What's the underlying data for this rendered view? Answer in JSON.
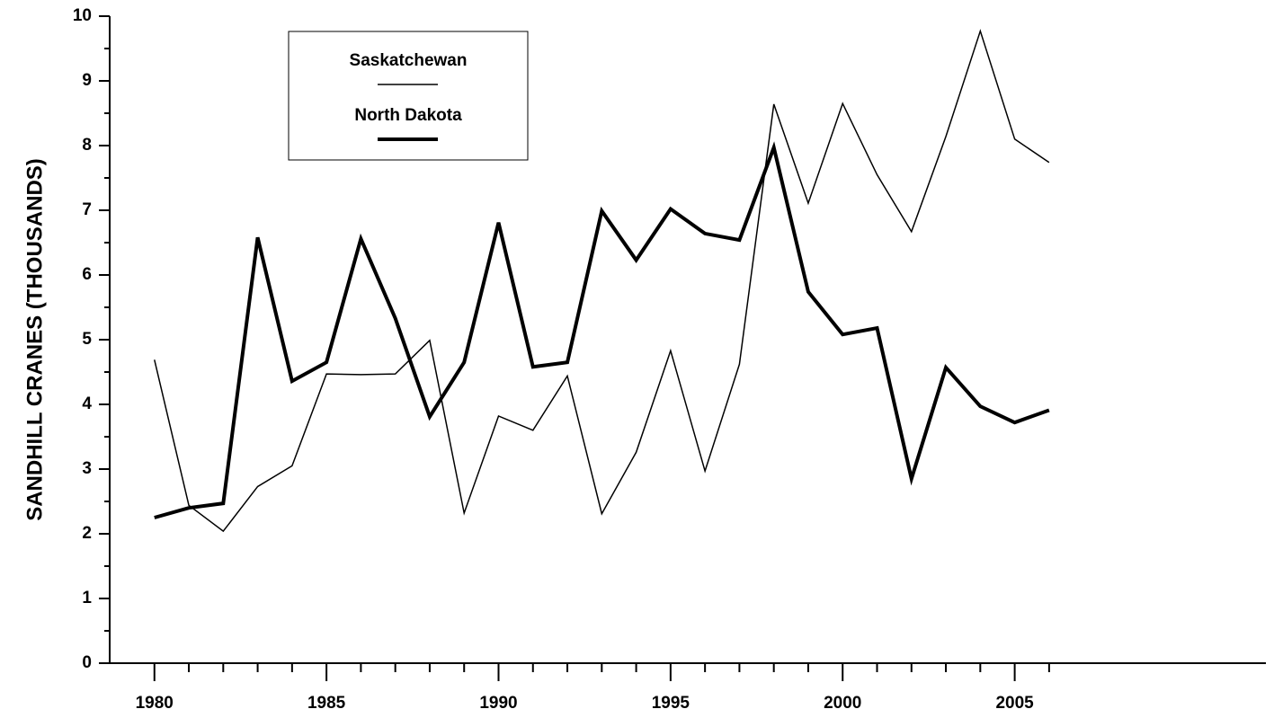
{
  "chart_data": {
    "type": "line",
    "y_label": "SANDHILL CRANES (THOUSANDS)",
    "x": [
      1980,
      1981,
      1982,
      1983,
      1984,
      1985,
      1986,
      1987,
      1988,
      1989,
      1990,
      1991,
      1992,
      1993,
      1994,
      1995,
      1996,
      1997,
      1998,
      1999,
      2000,
      2001,
      2002,
      2003,
      2004,
      2005,
      2006
    ],
    "series": [
      {
        "name": "Saskatchewan",
        "color": "#000000",
        "width": 1.5,
        "values": [
          4.69,
          2.44,
          2.04,
          2.73,
          3.05,
          4.47,
          4.46,
          4.47,
          4.99,
          2.32,
          3.82,
          3.6,
          4.44,
          2.31,
          3.26,
          4.83,
          2.97,
          4.62,
          8.64,
          7.11,
          8.65,
          7.55,
          6.67,
          8.14,
          9.77,
          8.1,
          7.74
        ]
      },
      {
        "name": "North Dakota",
        "color": "#000000",
        "width": 4,
        "values": [
          2.25,
          2.4,
          2.47,
          6.58,
          4.36,
          4.65,
          6.56,
          5.33,
          3.81,
          4.65,
          6.81,
          4.58,
          4.65,
          6.99,
          6.23,
          7.02,
          6.64,
          6.54,
          7.97,
          5.74,
          5.08,
          5.18,
          2.85,
          4.57,
          3.97,
          3.72,
          3.91
        ]
      }
    ],
    "xlim": [
      1978.7,
      2012.3
    ],
    "xticks": [
      1980,
      1985,
      1990,
      1995,
      2000,
      2005
    ],
    "xminor_ticks": [
      1981,
      1982,
      1983,
      1984,
      1986,
      1987,
      1988,
      1989,
      1991,
      1992,
      1993,
      1994,
      1996,
      1997,
      1998,
      1999,
      2001,
      2002,
      2003,
      2004,
      2006
    ],
    "ylim": [
      0,
      10
    ],
    "yticks": [
      0,
      1,
      2,
      3,
      4,
      5,
      6,
      7,
      8,
      9,
      10
    ],
    "yminor_ticks": [
      0.5,
      1.5,
      2.5,
      3.5,
      4.5,
      5.5,
      6.5,
      7.5,
      8.5,
      9.5
    ],
    "grid": false,
    "legend": "upper-left"
  }
}
